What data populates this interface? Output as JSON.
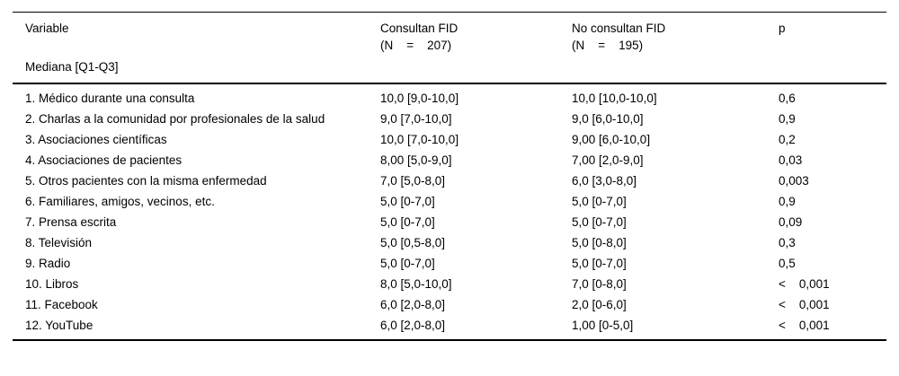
{
  "table": {
    "header": {
      "col_variable": "Variable",
      "col_group1_line1": "Consultan FID",
      "col_group1_line2": "(N    =    207)",
      "col_group2_line1": "No consultan FID",
      "col_group2_line2": "(N    =    195)",
      "col_p": "p",
      "subheader": "Mediana [Q1-Q3]"
    },
    "rows": [
      {
        "variable": "1. Médico durante una consulta",
        "g1": "10,0 [9,0-10,0]",
        "g2": "10,0 [10,0-10,0]",
        "p": "0,6"
      },
      {
        "variable": "2. Charlas a la comunidad por profesionales de la salud",
        "g1": "9,0 [7,0-10,0]",
        "g2": "9,0 [6,0-10,0]",
        "p": "0,9"
      },
      {
        "variable": "3. Asociaciones científicas",
        "g1": "10,0 [7,0-10,0]",
        "g2": "9,00 [6,0-10,0]",
        "p": "0,2"
      },
      {
        "variable": "4. Asociaciones de pacientes",
        "g1": "8,00 [5,0-9,0]",
        "g2": "7,00 [2,0-9,0]",
        "p": "0,03"
      },
      {
        "variable": "5. Otros pacientes con la misma enfermedad",
        "g1": "7,0 [5,0-8,0]",
        "g2": "6,0 [3,0-8,0]",
        "p": "0,003"
      },
      {
        "variable": "6. Familiares, amigos, vecinos, etc.",
        "g1": "5,0 [0-7,0]",
        "g2": "5,0 [0-7,0]",
        "p": "0,9"
      },
      {
        "variable": "7. Prensa escrita",
        "g1": "5,0 [0-7,0]",
        "g2": "5,0 [0-7,0]",
        "p": "0,09"
      },
      {
        "variable": "8. Televisión",
        "g1": "5,0 [0,5-8,0]",
        "g2": "5,0 [0-8,0]",
        "p": "0,3"
      },
      {
        "variable": "9. Radio",
        "g1": "5,0 [0-7,0]",
        "g2": "5,0 [0-7,0]",
        "p": "0,5"
      },
      {
        "variable": "10. Libros",
        "g1": "8,0 [5,0-10,0]",
        "g2": "7,0 [0-8,0]",
        "p": "<    0,001"
      },
      {
        "variable": "11. Facebook",
        "g1": "6,0 [2,0-8,0]",
        "g2": "2,0 [0-6,0]",
        "p": "<    0,001"
      },
      {
        "variable": "12. YouTube",
        "g1": "6,0 [2,0-8,0]",
        "g2": "1,00 [0-5,0]",
        "p": "<    0,001"
      }
    ]
  }
}
